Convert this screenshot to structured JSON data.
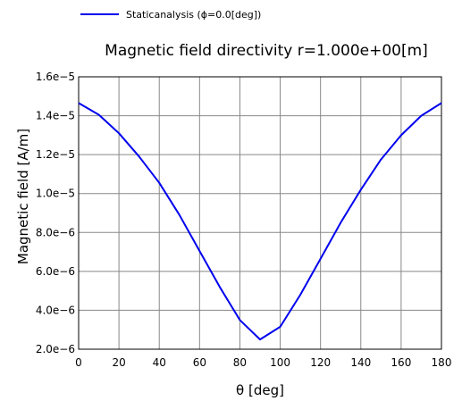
{
  "chart_data": {
    "type": "line",
    "title": "Magnetic field directivity r=1.000e+00[m]",
    "xlabel": "θ [deg]",
    "ylabel": "Magnetic field [A/m]",
    "xlim": [
      0,
      180
    ],
    "ylim": [
      2e-06,
      1.6e-05
    ],
    "grid": true,
    "legend_position": "top-left",
    "x_ticks": [
      0,
      20,
      40,
      60,
      80,
      100,
      120,
      140,
      160,
      180
    ],
    "x_tick_labels": [
      "0",
      "20",
      "40",
      "60",
      "80",
      "100",
      "120",
      "140",
      "160",
      "180"
    ],
    "y_ticks": [
      2e-06,
      4e-06,
      6e-06,
      8e-06,
      1e-05,
      1.2e-05,
      1.4e-05,
      1.6e-05
    ],
    "y_tick_labels": [
      "2.0e−6",
      "4.0e−6",
      "6.0e−6",
      "8.0e−6",
      "1.0e−5",
      "1.2e−5",
      "1.4e−5",
      "1.6e−5"
    ],
    "series": [
      {
        "name": "Staticanalysis (ϕ=0.0[deg])",
        "color": "#0000ee",
        "x": [
          0,
          10,
          20,
          30,
          40,
          50,
          60,
          70,
          80,
          90,
          100,
          110,
          120,
          130,
          140,
          150,
          160,
          170,
          180
        ],
        "y": [
          1.465e-05,
          1.405e-05,
          1.31e-05,
          1.19e-05,
          1.055e-05,
          8.9e-06,
          7.05e-06,
          5.2e-06,
          3.5e-06,
          2.5e-06,
          3.15e-06,
          4.8e-06,
          6.65e-06,
          8.5e-06,
          1.02e-05,
          1.175e-05,
          1.3e-05,
          1.4e-05,
          1.465e-05
        ]
      }
    ]
  }
}
